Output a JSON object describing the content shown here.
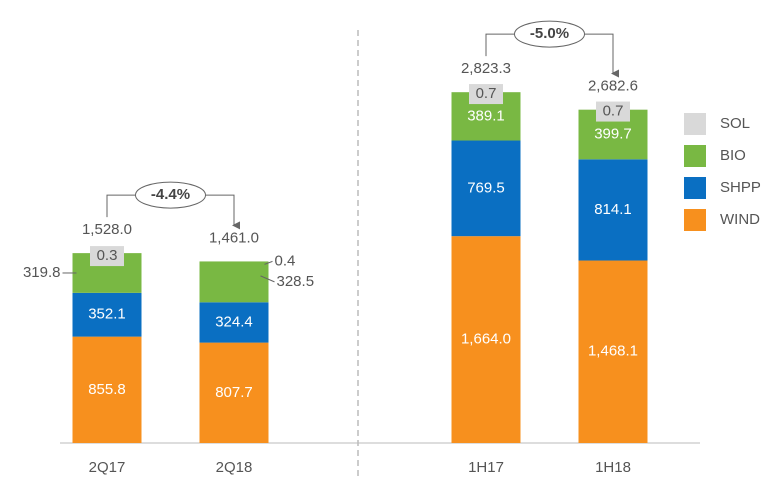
{
  "chart_data": {
    "type": "stacked_bar",
    "categories": [
      "2Q17",
      "2Q18",
      "1H17",
      "1H18"
    ],
    "series": [
      {
        "name": "WIND",
        "color": "#f7901e",
        "values": [
          855.8,
          807.7,
          1664.0,
          1468.1
        ],
        "value_labels": [
          "855.8",
          "807.7",
          "1,664.0",
          "1,468.1"
        ]
      },
      {
        "name": "SHPP",
        "color": "#0a6fc2",
        "values": [
          352.1,
          324.4,
          769.5,
          814.1
        ],
        "value_labels": [
          "352.1",
          "324.4",
          "769.5",
          "814.1"
        ]
      },
      {
        "name": "BIO",
        "color": "#79b843",
        "values": [
          319.8,
          328.5,
          389.1,
          399.7
        ],
        "value_labels": [
          "319.8",
          "328.5",
          "389.1",
          "399.7"
        ]
      },
      {
        "name": "SOL",
        "color": "#d9d9d9",
        "values": [
          0.3,
          0.4,
          0.7,
          0.7
        ],
        "value_labels": [
          "0.3",
          "0.4",
          "0.7",
          "0.7"
        ]
      }
    ],
    "totals": [
      1528.0,
      1461.0,
      2823.3,
      2682.6
    ],
    "total_labels": [
      "1,528.0",
      "1,461.0",
      "2,823.3",
      "2,682.6"
    ],
    "annotations": [
      "-4.4%",
      "-5.0%"
    ]
  }
}
